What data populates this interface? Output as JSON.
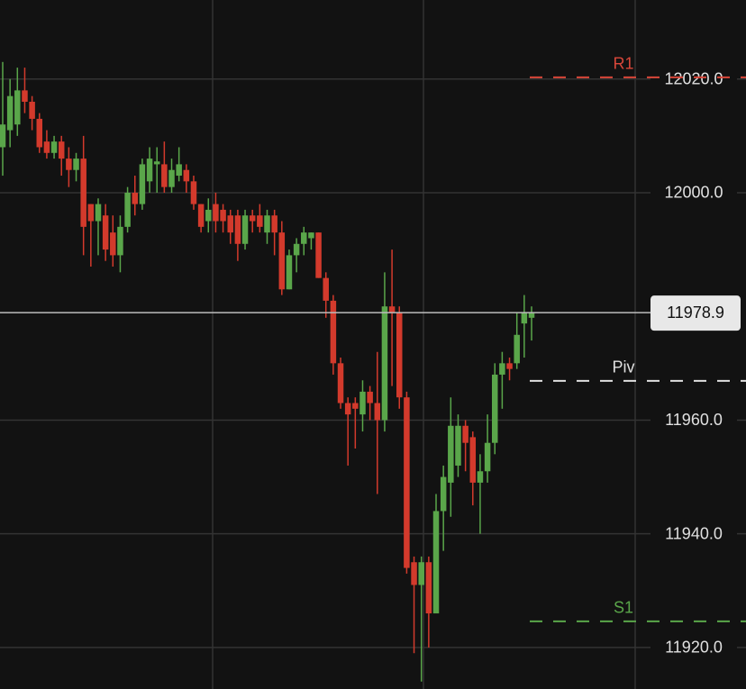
{
  "chart_data": {
    "type": "candlestick",
    "up_color": "#5aa64a",
    "down_color": "#d33a2c",
    "ylim": [
      11912.7,
      12033.9
    ],
    "yticks": [
      {
        "value": 11920,
        "label": "11920.0"
      },
      {
        "value": 11940,
        "label": "11940.0"
      },
      {
        "value": 11960,
        "label": "11960.0"
      },
      {
        "value": 12000,
        "label": "12000.0"
      },
      {
        "value": 12020,
        "label": "12020.0"
      }
    ],
    "grid": true,
    "open": [
      12008,
      12011,
      12012,
      12018,
      12016,
      12013,
      12009,
      12007,
      12009,
      12006,
      12004,
      12006,
      11998,
      11995,
      11996,
      11993,
      11989,
      11994,
      12000,
      11998,
      12002,
      12005,
      12005,
      12001,
      12003,
      12004,
      12002,
      11998,
      11995,
      11998,
      11997,
      11996,
      11996,
      11991,
      11996,
      11996,
      11993,
      11996,
      11993,
      11983,
      11989,
      11991,
      11992,
      11993,
      11985,
      11981,
      11970,
      11963,
      11963,
      11961,
      11965,
      11963,
      11960,
      11980,
      11979,
      11964,
      11935,
      11931,
      11935,
      11926,
      11944,
      11949,
      11952,
      11959,
      11957,
      11949,
      11951,
      11956,
      11968,
      11970,
      11970,
      11977,
      11978
    ],
    "high": [
      12023,
      12020,
      12022,
      12022,
      12017,
      12014,
      12011,
      12010,
      12010,
      12008,
      12007,
      12010,
      11998,
      11999,
      11998,
      11996,
      11996,
      12001,
      12003,
      12006,
      12008,
      12008,
      12009,
      12006,
      12008,
      12005,
      12003,
      11998,
      11999,
      12000,
      11998,
      11997,
      11997,
      11997,
      11997,
      11998,
      11997,
      11997,
      11995,
      11990,
      11992,
      11994,
      11993,
      11993,
      11986,
      11982,
      11971,
      11964,
      11964,
      11967,
      11966,
      11972,
      11986,
      11990,
      11980,
      11965,
      11936,
      11936,
      11936,
      11947,
      11952,
      11964,
      11961,
      11960,
      11958,
      11954,
      11961,
      11970,
      11972,
      11971,
      11979,
      11982,
      11980
    ],
    "low": [
      12003,
      12008,
      12010,
      12014,
      12011,
      12007,
      12006,
      12006,
      12003,
      12001,
      12002,
      11989,
      11987,
      11989,
      11988,
      11987,
      11986,
      11993,
      11996,
      11997,
      12000,
      12000,
      12000,
      12000,
      12002,
      12000,
      11997,
      11993,
      11993,
      11993,
      11993,
      11991,
      11988,
      11990,
      11993,
      11993,
      11991,
      11989,
      11982,
      11983,
      11986,
      11989,
      11990,
      11985,
      11978,
      11968,
      11962,
      11952,
      11955,
      11958,
      11960,
      11947,
      11958,
      11966,
      11962,
      11933,
      11919,
      11914,
      11920,
      11926,
      11937,
      11943,
      11950,
      11951,
      11945,
      11940,
      11949,
      11954,
      11962,
      11967,
      11969,
      11971,
      11974
    ],
    "close": [
      12012,
      12017,
      12018,
      12016,
      12013,
      12008,
      12007,
      12009,
      12006,
      12004,
      12006,
      11994,
      11995,
      11998,
      11990,
      11989,
      11994,
      12000,
      11998,
      12005,
      12006,
      12005.5,
      12001,
      12004,
      12005,
      12002,
      11998,
      11994,
      11997,
      11995,
      11995,
      11993,
      11991,
      11996,
      11995,
      11994,
      11996,
      11993,
      11983,
      11989,
      11991,
      11993,
      11993,
      11985,
      11981,
      11970,
      11963,
      11961,
      11962,
      11965,
      11963,
      11960,
      11980,
      11979,
      11964,
      11934,
      11931,
      11935,
      11926,
      11944,
      11950,
      11959,
      11959,
      11956,
      11949,
      11951,
      11956,
      11968,
      11970,
      11969,
      11975,
      11979,
      11978.9
    ],
    "last_price": 11978.9,
    "last_price_color": "#e8e8e8",
    "pivots": [
      {
        "label": "R1",
        "value": 12020.3,
        "color": "#d9473a"
      },
      {
        "label": "Piv",
        "value": 11966.9,
        "color": "#e0e0e0"
      },
      {
        "label": "S1",
        "value": 11924.6,
        "color": "#5aa64a"
      }
    ]
  }
}
